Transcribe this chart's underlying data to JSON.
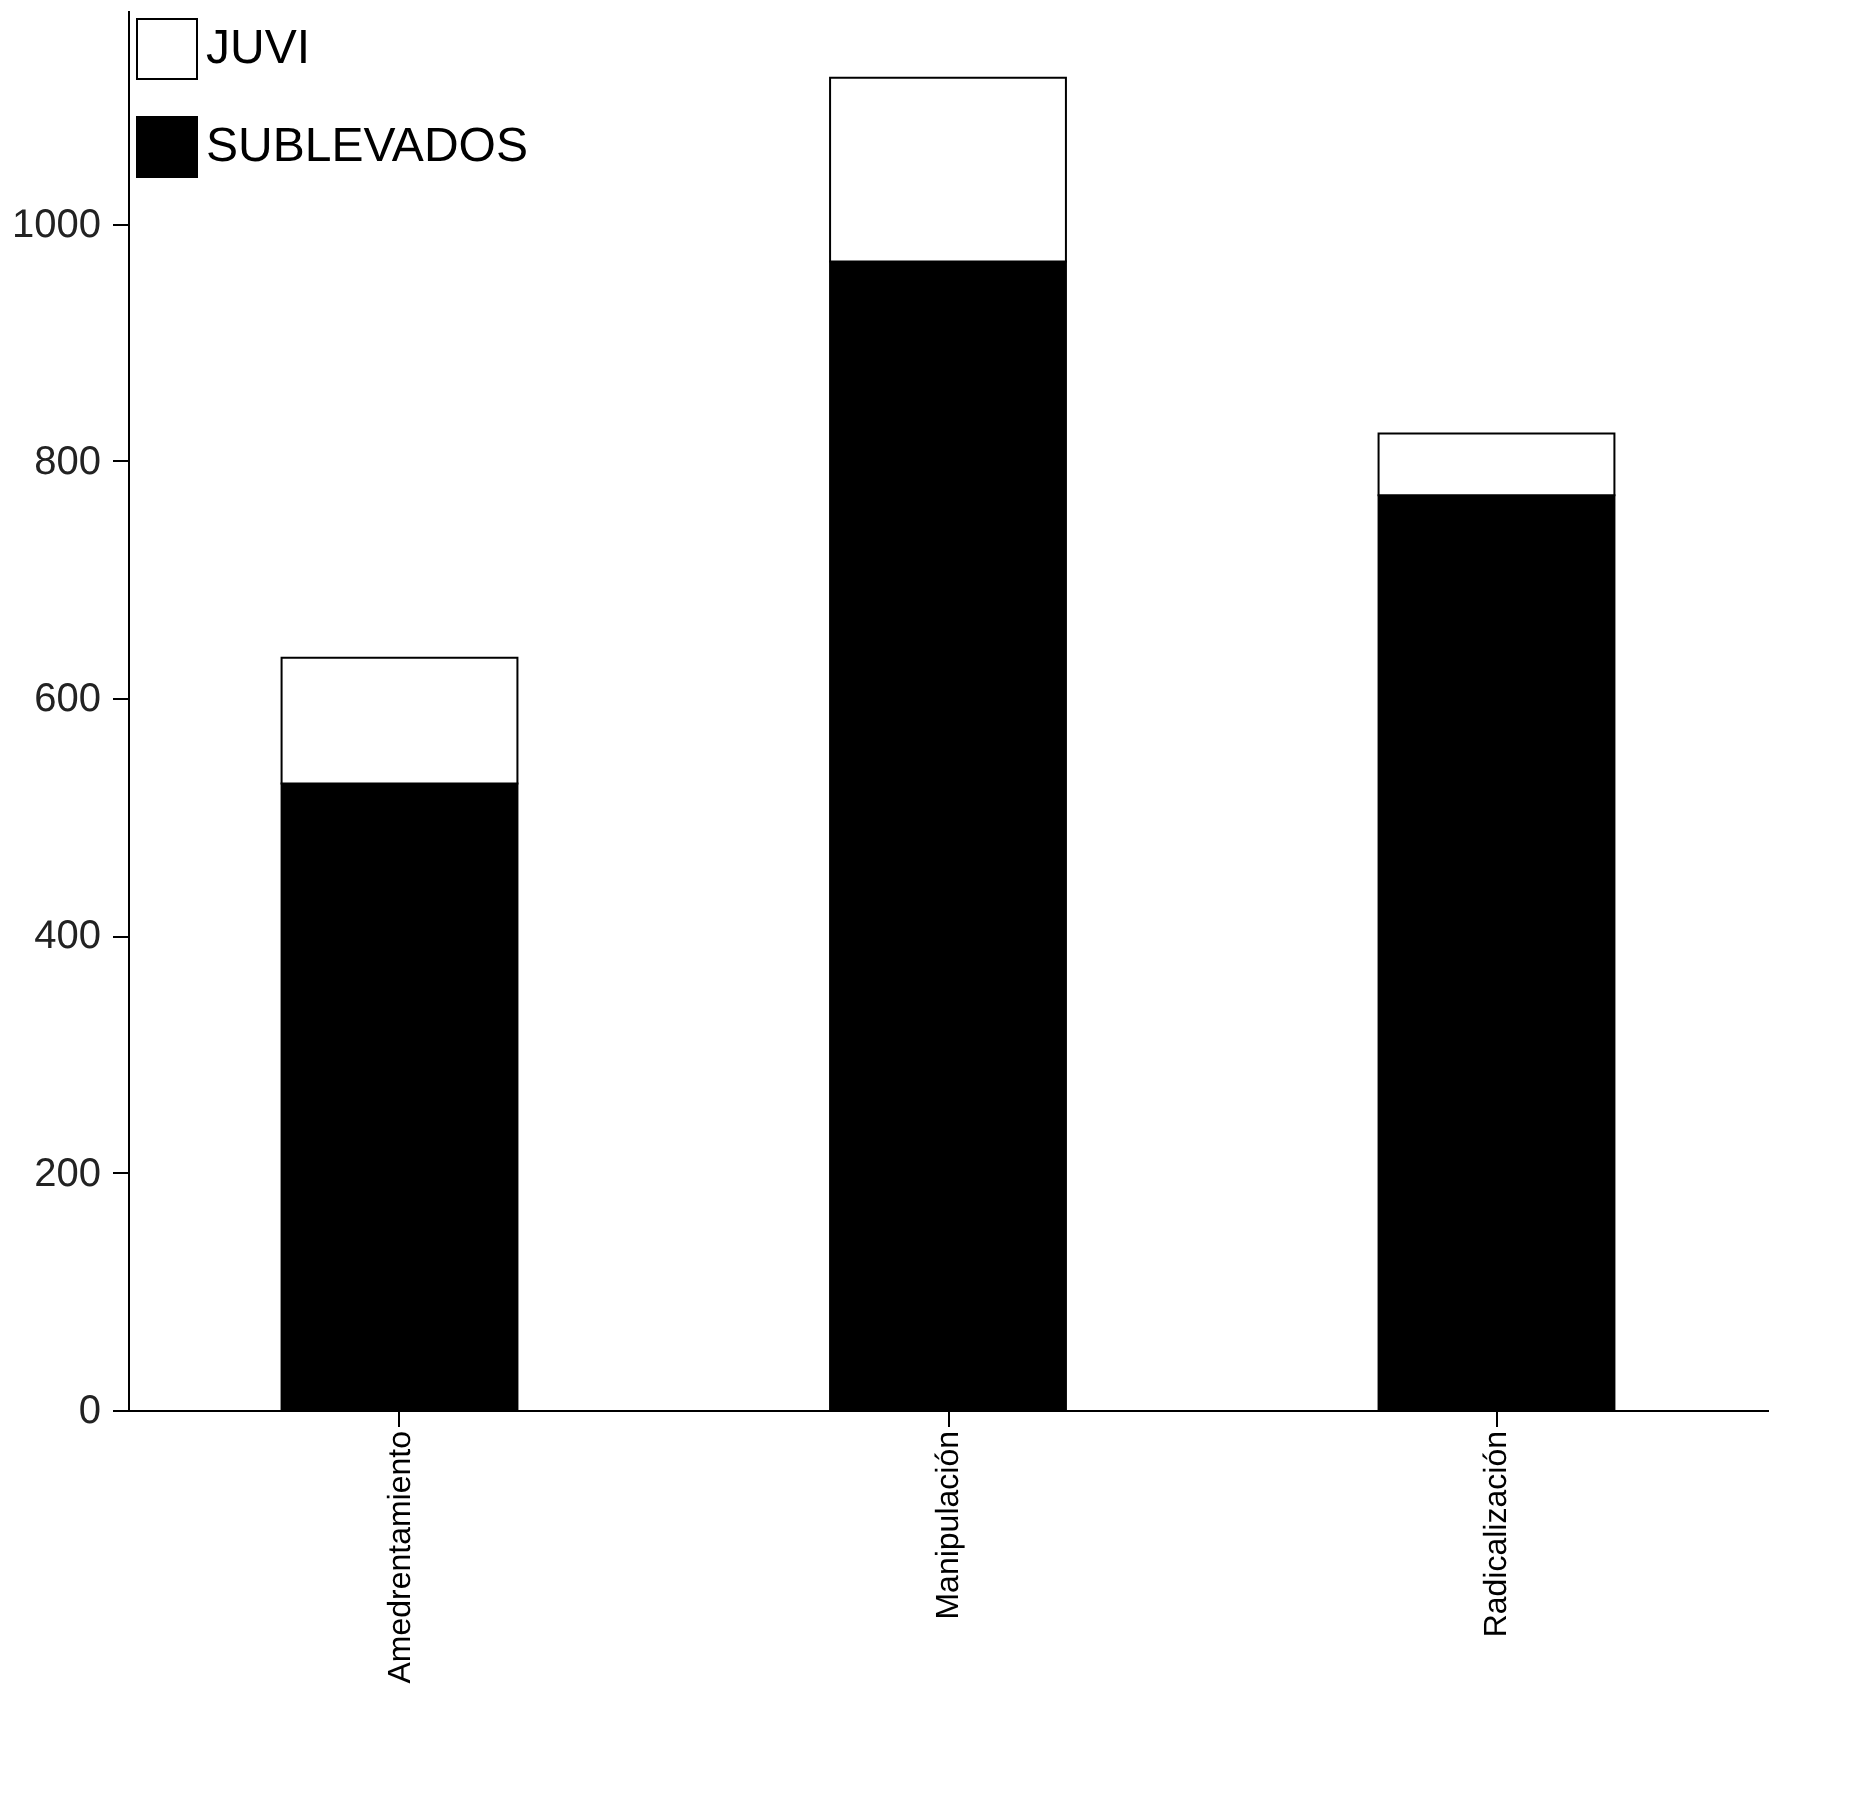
{
  "chart_data": {
    "type": "bar",
    "stacked": true,
    "categories": [
      "Amedrentamiento",
      "Manipulación",
      "Radicalización"
    ],
    "series": [
      {
        "name": "SUBLEVADOS",
        "color": "#000000",
        "values": [
          528,
          968,
          771
        ]
      },
      {
        "name": "JUVI",
        "color": "#ffffff",
        "values": [
          106,
          155,
          52
        ]
      }
    ],
    "ylim": [
      0,
      1180
    ],
    "yticks": [
      0,
      200,
      400,
      600,
      800,
      1000
    ],
    "grid": false,
    "legend": "top left"
  }
}
